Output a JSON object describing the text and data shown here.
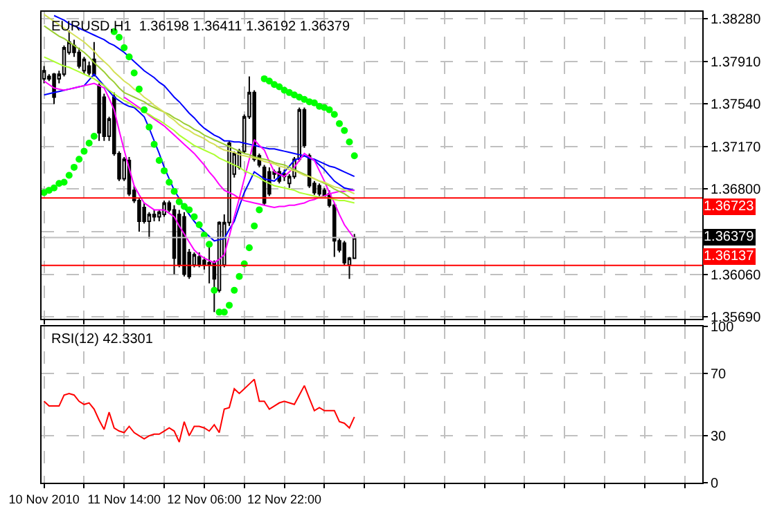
{
  "chart_data": [
    {
      "type": "candlestick",
      "title": "EURUSD,H1  1.36198 1.36411 1.36192 1.36379",
      "categories": [
        "10 Nov 2010",
        null,
        null,
        null,
        null,
        null,
        null,
        null,
        null,
        null,
        null,
        null,
        null,
        null,
        null,
        null,
        "11 Nov 14:00",
        null,
        null,
        null,
        null,
        null,
        null,
        null,
        null,
        null,
        null,
        null,
        null,
        null,
        null,
        null,
        "12 Nov 06:00",
        null,
        null,
        null,
        null,
        null,
        null,
        null,
        null,
        null,
        null,
        null,
        null,
        null,
        null,
        null,
        "12 Nov 22:00",
        null,
        null,
        null,
        null,
        null,
        null,
        null,
        null,
        null,
        null,
        null,
        null,
        null,
        null,
        null,
        null,
        null,
        null,
        null,
        null,
        null,
        null,
        null,
        null,
        null,
        null,
        null,
        null,
        null,
        null,
        null,
        null,
        null,
        null,
        null,
        null,
        null,
        null,
        null,
        null,
        null,
        null,
        null,
        null,
        null,
        null,
        null,
        null,
        null,
        null,
        null,
        null,
        null,
        null,
        null,
        null,
        null,
        null,
        null,
        null,
        null,
        null,
        null,
        null,
        null,
        null,
        null,
        null,
        null,
        null,
        null,
        null,
        null,
        null,
        null,
        null,
        null,
        null,
        null,
        null,
        null,
        null,
        null
      ],
      "ohlc": [
        [
          1.3776,
          1.3787,
          1.3772,
          1.3783
        ],
        [
          1.3778,
          1.378,
          1.3774,
          1.3776
        ],
        [
          1.378,
          1.3781,
          1.3754,
          1.376
        ],
        [
          1.3776,
          1.3783,
          1.3772,
          1.378
        ],
        [
          1.378,
          1.3805,
          1.3778,
          1.3803
        ],
        [
          1.3799,
          1.3818,
          1.3797,
          1.3808
        ],
        [
          1.3805,
          1.381,
          1.3795,
          1.3799
        ],
        [
          1.3799,
          1.3803,
          1.3785,
          1.3787
        ],
        [
          1.3783,
          1.3795,
          1.378,
          1.3793
        ],
        [
          1.3787,
          1.3791,
          1.3779,
          1.3781
        ],
        [
          1.3793,
          1.3808,
          1.3778,
          1.378
        ],
        [
          1.377,
          1.3772,
          1.3722,
          1.3729
        ],
        [
          1.376,
          1.3763,
          1.3722,
          1.3726
        ],
        [
          1.3726,
          1.3743,
          1.3722,
          1.3741
        ],
        [
          1.376,
          1.3764,
          1.3709,
          1.3711
        ],
        [
          1.3711,
          1.3713,
          1.3687,
          1.3689
        ],
        [
          1.3689,
          1.3708,
          1.3687,
          1.3706
        ],
        [
          1.3705,
          1.3708,
          1.3674,
          1.3676
        ],
        [
          1.3679,
          1.3683,
          1.3668,
          1.367
        ],
        [
          1.367,
          1.3672,
          1.3643,
          1.3652
        ],
        [
          1.3664,
          1.3668,
          1.365,
          1.3652
        ],
        [
          1.3652,
          1.366,
          1.3637,
          1.3658
        ],
        [
          1.3658,
          1.3662,
          1.3652,
          1.3656
        ],
        [
          1.3656,
          1.3662,
          1.3652,
          1.366
        ],
        [
          1.3658,
          1.367,
          1.3656,
          1.3668
        ],
        [
          1.3668,
          1.367,
          1.366,
          1.3662
        ],
        [
          1.3662,
          1.3666,
          1.3606,
          1.362
        ],
        [
          1.3658,
          1.3662,
          1.3612,
          1.3614
        ],
        [
          1.3656,
          1.366,
          1.3604,
          1.3606
        ],
        [
          1.3625,
          1.3628,
          1.3602,
          1.3604
        ],
        [
          1.3614,
          1.3625,
          1.3612,
          1.3623
        ],
        [
          1.3621,
          1.3625,
          1.3612,
          1.3614
        ],
        [
          1.3618,
          1.3621,
          1.361,
          1.3614
        ],
        [
          1.3614,
          1.3633,
          1.3598,
          1.3616
        ],
        [
          1.3616,
          1.3618,
          1.3573,
          1.3602
        ],
        [
          1.3592,
          1.3652,
          1.359,
          1.3651
        ],
        [
          1.3614,
          1.3658,
          1.3612,
          1.3651
        ],
        [
          1.3651,
          1.3722,
          1.3648,
          1.372
        ],
        [
          1.3693,
          1.3713,
          1.369,
          1.3711
        ],
        [
          1.3699,
          1.3715,
          1.3697,
          1.3713
        ],
        [
          1.3713,
          1.3745,
          1.3711,
          1.3743
        ],
        [
          1.3743,
          1.3778,
          1.3741,
          1.3764
        ],
        [
          1.3764,
          1.3766,
          1.3704,
          1.3706
        ],
        [
          1.3709,
          1.3711,
          1.3699,
          1.3701
        ],
        [
          1.3699,
          1.3701,
          1.3666,
          1.3668
        ],
        [
          1.3695,
          1.3699,
          1.3674,
          1.3676
        ],
        [
          1.3695,
          1.3697,
          1.3689,
          1.3693
        ],
        [
          1.3695,
          1.3699,
          1.3685,
          1.3687
        ],
        [
          1.3693,
          1.3697,
          1.3687,
          1.3691
        ],
        [
          1.3685,
          1.3693,
          1.3681,
          1.3691
        ],
        [
          1.3691,
          1.3708,
          1.3689,
          1.3706
        ],
        [
          1.3706,
          1.3751,
          1.3704,
          1.3749
        ],
        [
          1.3749,
          1.3751,
          1.3716,
          1.3718
        ],
        [
          1.3709,
          1.3711,
          1.3681,
          1.3683
        ],
        [
          1.3685,
          1.3687,
          1.3675,
          1.3677
        ],
        [
          1.3683,
          1.3685,
          1.3674,
          1.3676
        ],
        [
          1.3679,
          1.3681,
          1.3672,
          1.3674
        ],
        [
          1.3676,
          1.3679,
          1.3664,
          1.3666
        ],
        [
          1.3666,
          1.3668,
          1.3621,
          1.3635
        ],
        [
          1.3635,
          1.3637,
          1.3625,
          1.3627
        ],
        [
          1.3633,
          1.3635,
          1.3614,
          1.3616
        ],
        [
          1.3614,
          1.3621,
          1.3602,
          1.362
        ],
        [
          1.36198,
          1.36411,
          1.36192,
          1.36379
        ],
        null,
        null,
        null,
        null,
        null,
        null,
        null,
        null,
        null,
        null,
        null,
        null,
        null,
        null,
        null,
        null,
        null,
        null,
        null,
        null,
        null,
        null,
        null,
        null,
        null,
        null,
        null,
        null,
        null,
        null,
        null,
        null,
        null,
        null,
        null,
        null,
        null,
        null,
        null,
        null,
        null,
        null,
        null,
        null,
        null,
        null,
        null,
        null,
        null,
        null,
        null,
        null,
        null,
        null,
        null,
        null,
        null,
        null,
        null,
        null,
        null,
        null,
        null,
        null,
        null,
        null,
        null,
        null,
        null
      ],
      "series": [
        {
          "type": "line",
          "color": "#0000ff",
          "values": [
            null,
            null,
            1.3831,
            1.3829,
            1.3827,
            1.3824,
            1.3822,
            1.382,
            1.3818,
            1.3816,
            1.3814,
            1.3812,
            1.381,
            1.3807,
            1.3805,
            1.3802,
            1.3799,
            1.3795,
            1.3791,
            1.3787,
            1.3783,
            1.378,
            1.3777,
            1.3773,
            1.377,
            1.3765,
            1.376,
            1.3756,
            1.3751,
            1.3746,
            1.3742,
            1.3737,
            1.3733,
            1.373,
            1.3727,
            1.3725,
            1.3722,
            1.3722,
            1.3721,
            1.3721,
            1.372,
            1.3719,
            1.3718,
            1.3717,
            1.3716,
            1.3715,
            1.3715,
            1.3714,
            1.3713,
            1.3712,
            1.3711,
            1.371,
            1.3709,
            1.3707,
            1.3706,
            1.3704,
            1.3702,
            1.37,
            1.3699,
            1.3697,
            1.3695,
            1.3693,
            1.3691,
            null,
            null,
            null,
            null,
            null,
            null,
            null,
            null,
            null,
            null,
            null,
            null,
            null,
            null,
            null,
            null,
            null,
            null,
            null,
            null,
            null,
            null,
            null,
            null,
            null,
            null,
            null,
            null,
            null,
            null,
            null,
            null,
            null,
            null,
            null,
            null,
            null,
            null,
            null,
            null,
            null,
            null,
            null,
            null,
            null,
            null,
            null,
            null,
            null,
            null,
            null,
            null,
            null,
            null,
            null,
            null,
            null,
            null,
            null,
            null,
            null,
            null,
            null,
            null,
            null,
            null,
            null,
            null,
            null
          ]
        },
        {
          "type": "line",
          "color": "#0000ff",
          "values": [
            1.3762,
            1.3763,
            1.3764,
            1.3765,
            1.3766,
            1.3767,
            1.3768,
            1.3769,
            1.377,
            1.3775,
            1.378,
            1.3775,
            1.377,
            1.3765,
            1.376,
            1.3757,
            1.3754,
            1.3752,
            1.3751,
            1.3747,
            1.3743,
            1.3733,
            1.3722,
            1.3711,
            1.3699,
            1.3689,
            1.3679,
            1.3672,
            1.3664,
            1.3658,
            1.3652,
            1.3647,
            1.3643,
            1.3639,
            1.3635,
            1.3636,
            1.3637,
            1.3645,
            1.3652,
            1.3665,
            1.3677,
            1.3686,
            1.3695,
            1.3692,
            1.3689,
            1.3688,
            1.3687,
            1.3691,
            1.3695,
            1.37,
            1.3705,
            1.3707,
            1.3709,
            1.3707,
            1.3705,
            1.3701,
            1.3697,
            1.3692,
            1.3687,
            1.3684,
            1.3681,
            1.368,
            1.3679,
            null,
            null,
            null,
            null,
            null,
            null,
            null,
            null,
            null,
            null,
            null,
            null,
            null,
            null,
            null,
            null,
            null,
            null,
            null,
            null,
            null,
            null,
            null,
            null,
            null,
            null,
            null,
            null,
            null,
            null,
            null,
            null,
            null,
            null,
            null,
            null,
            null,
            null,
            null,
            null,
            null,
            null,
            null,
            null,
            null,
            null,
            null,
            null,
            null,
            null,
            null,
            null,
            null,
            null,
            null,
            null,
            null,
            null,
            null,
            null,
            null,
            null,
            null,
            null,
            null,
            null,
            null,
            null,
            null
          ]
        },
        {
          "type": "line",
          "color": "#ff00ff",
          "values": [
            1.3774,
            1.3771,
            1.3768,
            1.3767,
            1.3766,
            1.3767,
            1.3768,
            1.3769,
            1.377,
            1.3771,
            1.3772,
            1.377,
            1.3768,
            1.3759,
            1.3749,
            1.3731,
            1.3714,
            1.3698,
            1.3683,
            1.3675,
            1.3668,
            1.3665,
            1.3662,
            1.3662,
            1.3662,
            1.3659,
            1.3656,
            1.3648,
            1.3641,
            1.3634,
            1.3627,
            1.3623,
            1.362,
            1.3618,
            1.3616,
            1.3619,
            1.3623,
            1.3639,
            1.3656,
            1.3672,
            1.3689,
            1.3706,
            1.3723,
            1.3718,
            1.3714,
            1.3704,
            1.3695,
            1.3693,
            1.3691,
            1.3695,
            1.3699,
            1.3705,
            1.3711,
            1.3708,
            1.3705,
            1.3696,
            1.3687,
            1.3677,
            1.3668,
            1.3658,
            1.3649,
            1.3643,
            1.3637,
            null,
            null,
            null,
            null,
            null,
            null,
            null,
            null,
            null,
            null,
            null,
            null,
            null,
            null,
            null,
            null,
            null,
            null,
            null,
            null,
            null,
            null,
            null,
            null,
            null,
            null,
            null,
            null,
            null,
            null,
            null,
            null,
            null,
            null,
            null,
            null,
            null,
            null,
            null,
            null,
            null,
            null,
            null,
            null,
            null,
            null,
            null,
            null,
            null,
            null,
            null,
            null,
            null,
            null,
            null,
            null,
            null,
            null,
            null,
            null,
            null,
            null,
            null,
            null,
            null,
            null,
            null,
            null,
            null
          ]
        },
        {
          "type": "line",
          "color": "#ff00ff",
          "values": [
            null,
            null,
            null,
            null,
            null,
            null,
            null,
            null,
            null,
            null,
            null,
            null,
            null,
            null,
            null,
            null,
            1.376,
            1.3757,
            1.3754,
            1.3751,
            1.3748,
            1.3744,
            1.3741,
            1.3738,
            1.3735,
            1.3731,
            1.3727,
            1.3723,
            1.3719,
            1.3715,
            1.3711,
            1.3706,
            1.3701,
            1.3695,
            1.369,
            1.3684,
            1.3679,
            1.3677,
            1.3675,
            1.3672,
            1.367,
            1.3669,
            1.3668,
            1.3667,
            1.3666,
            1.3665,
            1.3664,
            1.3665,
            1.3665,
            1.3666,
            1.3666,
            1.3667,
            1.3668,
            1.367,
            1.3671,
            1.3673,
            1.3674,
            1.3676,
            1.3677,
            1.3678,
            1.3678,
            1.3679,
            1.3679,
            null,
            null,
            null,
            null,
            null,
            null,
            null,
            null,
            null,
            null,
            null,
            null,
            null,
            null,
            null,
            null,
            null,
            null,
            null,
            null,
            null,
            null,
            null,
            null,
            null,
            null,
            null,
            null,
            null,
            null,
            null,
            null,
            null,
            null,
            null,
            null,
            null,
            null,
            null,
            null,
            null,
            null,
            null,
            null,
            null,
            null,
            null,
            null,
            null,
            null,
            null,
            null,
            null,
            null,
            null,
            null,
            null,
            null,
            null,
            null,
            null,
            null,
            null,
            null,
            null,
            null,
            null,
            null,
            null
          ]
        },
        {
          "type": "line",
          "color": "#9acd32",
          "values": [
            1.3822,
            1.3819,
            1.3816,
            1.3813,
            1.3811,
            1.3808,
            1.3805,
            1.3802,
            1.3799,
            1.3795,
            1.379,
            1.3786,
            1.3782,
            1.3777,
            1.3773,
            1.3768,
            1.3764,
            1.3762,
            1.376,
            1.3758,
            1.3756,
            1.3753,
            1.3751,
            1.3749,
            1.3747,
            1.3745,
            1.3742,
            1.374,
            1.3737,
            1.3735,
            1.3732,
            1.373,
            1.3727,
            1.3725,
            1.3723,
            1.3721,
            1.3719,
            1.3717,
            1.3715,
            1.3713,
            1.3711,
            1.371,
            1.3708,
            1.3707,
            1.3706,
            1.3705,
            1.3703,
            1.3702,
            1.3701,
            1.3699,
            1.3697,
            1.3695,
            1.3693,
            1.3691,
            1.3689,
            1.3687,
            1.3685,
            1.3683,
            1.368,
            1.3678,
            1.3676,
            1.3673,
            1.3671,
            null,
            null,
            null,
            null,
            null,
            null,
            null,
            null,
            null,
            null,
            null,
            null,
            null,
            null,
            null,
            null,
            null,
            null,
            null,
            null,
            null,
            null,
            null,
            null,
            null,
            null,
            null,
            null,
            null,
            null,
            null,
            null,
            null,
            null,
            null,
            null,
            null,
            null,
            null,
            null,
            null,
            null,
            null,
            null,
            null,
            null,
            null,
            null,
            null,
            null,
            null,
            null,
            null,
            null,
            null,
            null,
            null,
            null,
            null,
            null,
            null,
            null,
            null,
            null,
            null,
            null,
            null,
            null,
            null
          ]
        },
        {
          "type": "line",
          "color": "#adff2f",
          "values": [
            1.3795,
            1.3793,
            1.3791,
            1.3789,
            1.3787,
            1.3786,
            1.3784,
            1.3782,
            1.378,
            1.3778,
            1.3776,
            1.3773,
            1.377,
            1.3766,
            1.3763,
            1.376,
            1.3757,
            1.3755,
            1.3752,
            1.375,
            1.3747,
            1.3745,
            1.3742,
            1.374,
            1.3737,
            1.3734,
            1.3731,
            1.3727,
            1.3724,
            1.3721,
            1.3718,
            1.3716,
            1.3714,
            1.3712,
            1.371,
            1.3707,
            1.3705,
            1.3703,
            1.3701,
            1.3699,
            1.3696,
            1.3694,
            1.3692,
            1.369,
            1.3687,
            1.3685,
            1.3683,
            1.3682,
            1.3681,
            1.368,
            1.3679,
            1.3677,
            1.3676,
            1.3675,
            1.3674,
            1.3673,
            1.3673,
            1.3672,
            1.3671,
            1.367,
            1.367,
            1.3669,
            1.3668,
            null,
            null,
            null,
            null,
            null,
            null,
            null,
            null,
            null,
            null,
            null,
            null,
            null,
            null,
            null,
            null,
            null,
            null,
            null,
            null,
            null,
            null,
            null,
            null,
            null,
            null,
            null,
            null,
            null,
            null,
            null,
            null,
            null,
            null,
            null,
            null,
            null,
            null,
            null,
            null,
            null,
            null,
            null,
            null,
            null,
            null,
            null,
            null,
            null,
            null,
            null,
            null,
            null,
            null,
            null,
            null,
            null,
            null,
            null,
            null,
            null,
            null,
            null,
            null,
            null,
            null,
            null,
            null,
            null
          ]
        },
        {
          "type": "line",
          "color": "#d4e157",
          "values": [
            1.3832,
            1.3829,
            1.3826,
            1.3823,
            1.382,
            1.3817,
            1.3814,
            1.3811,
            1.3808,
            1.3804,
            1.38,
            1.3795,
            1.3791,
            1.3787,
            1.3782,
            1.3778,
            1.3774,
            1.3771,
            1.3767,
            1.3764,
            1.376,
            1.3757,
            1.3753,
            1.375,
            1.3747,
            1.3743,
            1.374,
            1.3736,
            1.3733,
            1.3731,
            1.3728,
            1.3726,
            1.3724,
            1.3721,
            1.3719,
            1.3716,
            1.3714,
            1.3713,
            1.3712,
            1.371,
            1.3709,
            1.3708,
            1.3707,
            1.3706,
            1.3704,
            1.3703,
            1.3702,
            1.37,
            1.3699,
            1.3697,
            1.3696,
            1.3694,
            1.3692,
            1.3691,
            1.3689,
            1.3687,
            1.3686,
            1.3684,
            1.3682,
            1.3681,
            1.3679,
            1.3678,
            1.3676,
            null,
            null,
            null,
            null,
            null,
            null,
            null,
            null,
            null,
            null,
            null,
            null,
            null,
            null,
            null,
            null,
            null,
            null,
            null,
            null,
            null,
            null,
            null,
            null,
            null,
            null,
            null,
            null,
            null,
            null,
            null,
            null,
            null,
            null,
            null,
            null,
            null,
            null,
            null,
            null,
            null,
            null,
            null,
            null,
            null,
            null,
            null,
            null,
            null,
            null,
            null,
            null,
            null,
            null,
            null,
            null,
            null,
            null,
            null,
            null,
            null,
            null,
            null,
            null,
            null,
            null,
            null,
            null,
            null
          ]
        },
        {
          "type": "scatter",
          "color": "#00ff00",
          "marker": "circle",
          "values": [
            1.3677,
            1.3679,
            1.3681,
            1.3685,
            1.3686,
            1.3692,
            1.3699,
            1.3706,
            1.3713,
            1.372,
            1.3726,
            null,
            null,
            null,
            1.3817,
            1.3812,
            1.3803,
            1.3795,
            1.3781,
            1.3767,
            1.3749,
            1.3734,
            1.3719,
            1.3705,
            1.3696,
            1.3686,
            1.3678,
            1.3669,
            1.3665,
            1.3662,
            1.3656,
            1.3649,
            1.364,
            1.3632,
            1.3592,
            1.3573,
            1.3573,
            1.3579,
            1.3592,
            1.3604,
            1.3615,
            1.3629,
            1.3648,
            1.3662,
            1.3776,
            1.3774,
            1.3771,
            1.3769,
            1.3766,
            1.3764,
            1.3762,
            1.376,
            1.3758,
            1.3756,
            1.3755,
            1.3752,
            1.3751,
            1.3749,
            1.3745,
            1.3737,
            1.3731,
            1.3721,
            1.3709,
            null,
            null,
            null,
            null,
            null,
            null,
            null,
            null,
            null,
            null,
            null,
            null,
            null,
            null,
            null,
            null,
            null,
            null,
            null,
            null,
            null,
            null,
            null,
            null,
            null,
            null,
            null,
            null,
            null,
            null,
            null,
            null,
            null,
            null,
            null,
            null,
            null,
            null,
            null,
            null,
            null,
            null,
            null,
            null,
            null,
            null,
            null,
            null,
            null,
            null,
            null,
            null,
            null,
            null,
            null,
            null,
            null,
            null,
            null,
            null,
            null,
            null,
            null,
            null,
            null,
            null,
            null,
            null,
            null
          ]
        }
      ],
      "ylim": [
        1.3567,
        1.3834
      ],
      "yticks": [
        {
          "value": 1.3569,
          "label": "1.35690"
        },
        {
          "value": 1.3606,
          "label": "1.36060"
        },
        {
          "value": 1.3643,
          "label": null
        },
        {
          "value": 1.368,
          "label": "1.36800"
        },
        {
          "value": 1.3717,
          "label": "1.37170"
        },
        {
          "value": 1.3754,
          "label": "1.37540"
        },
        {
          "value": 1.3791,
          "label": "1.37910"
        },
        {
          "value": 1.3828,
          "label": "1.38280"
        }
      ],
      "ref_lines": [
        {
          "axis": "y",
          "value": 1.36723,
          "label": "1.36723",
          "color": "#ff0000"
        },
        {
          "axis": "y",
          "value": 1.36379,
          "label": "1.36379",
          "color": "#c0c0c0"
        },
        {
          "axis": "y",
          "value": 1.36137,
          "label": "1.36137",
          "color": "#ff0000"
        }
      ],
      "grid": true,
      "tick_labels": "y"
    },
    {
      "type": "line",
      "title": "RSI(12) 42.3301",
      "series": [
        {
          "color": "#ff0000",
          "values": [
            52,
            49,
            49,
            49,
            56,
            57,
            56,
            52,
            50,
            51,
            47,
            40,
            34,
            45,
            35,
            33,
            32,
            36,
            32,
            30,
            28,
            30,
            31,
            31,
            33,
            35,
            33,
            26,
            39,
            30,
            36,
            36,
            35,
            33,
            37,
            32,
            47,
            48,
            60,
            57,
            60,
            63,
            66,
            52,
            52,
            47,
            49,
            51,
            52,
            51,
            50,
            56,
            62,
            54,
            46,
            48,
            46,
            46,
            46,
            39,
            38,
            35,
            42,
            null,
            null,
            null,
            null,
            null,
            null,
            null,
            null,
            null,
            null,
            null,
            null,
            null,
            null,
            null,
            null,
            null,
            null,
            null,
            null,
            null,
            null,
            null,
            null,
            null,
            null,
            null,
            null,
            null,
            null,
            null,
            null,
            null,
            null,
            null,
            null,
            null,
            null,
            null,
            null,
            null,
            null,
            null,
            null,
            null,
            null,
            null,
            null,
            null,
            null,
            null,
            null,
            null,
            null,
            null,
            null,
            null,
            null,
            null,
            null,
            null,
            null,
            null,
            null,
            null,
            null,
            null,
            null,
            null
          ]
        }
      ],
      "ylim": [
        0,
        100
      ],
      "yticks": [
        0,
        30,
        70,
        100
      ],
      "grid": true
    }
  ]
}
